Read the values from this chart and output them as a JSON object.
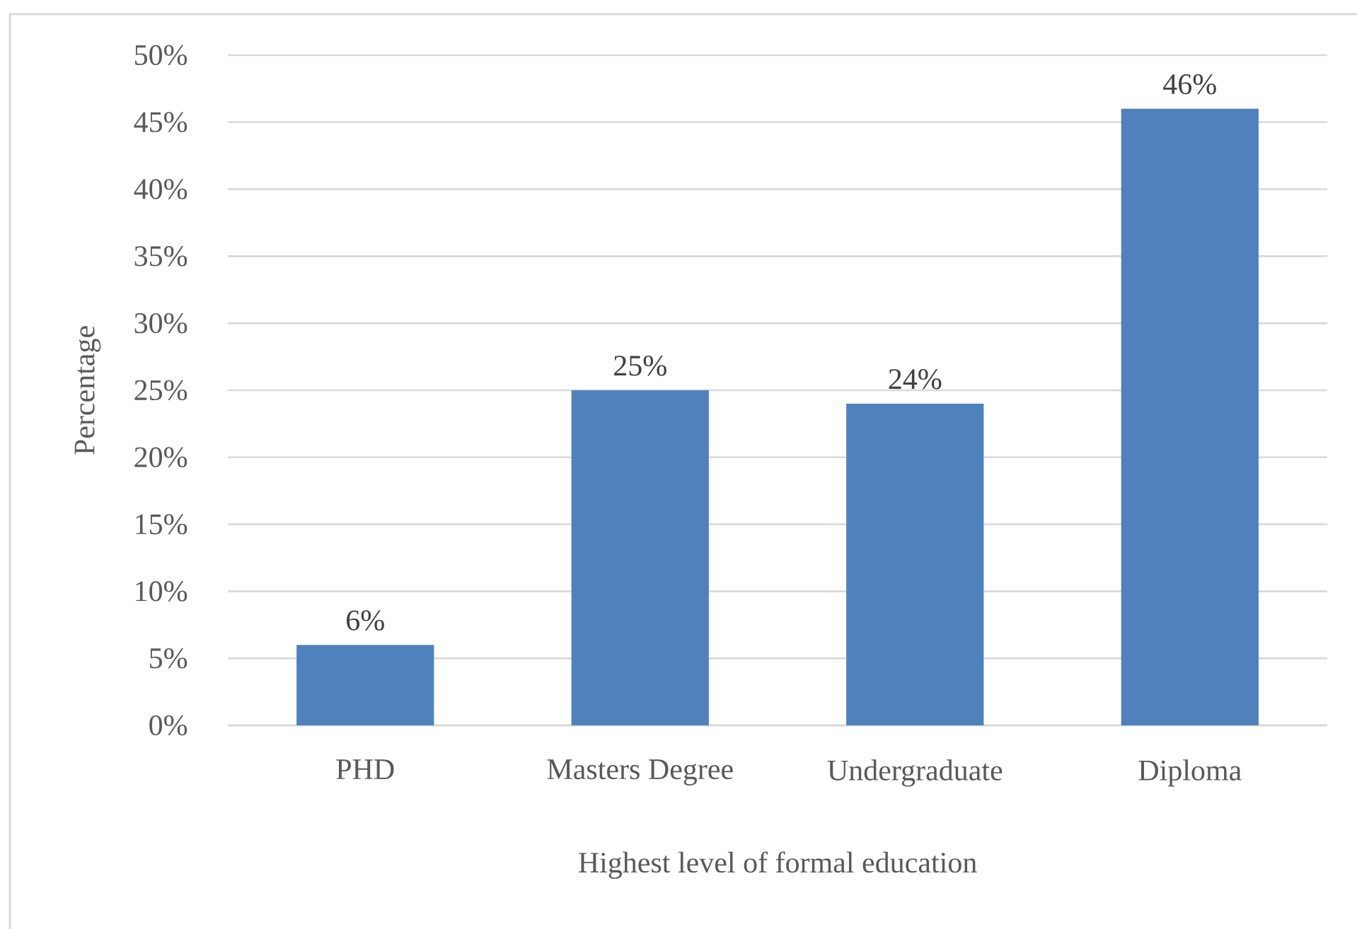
{
  "chart_data": {
    "type": "bar",
    "xlabel": "Highest level of formal education",
    "ylabel": "Percentage",
    "categories": [
      "PHD",
      "Masters Degree",
      "Undergraduate",
      "Diploma"
    ],
    "values": [
      6,
      25,
      24,
      46
    ],
    "color": "#4f81bd",
    "value_labels": [
      "6%",
      "25%",
      "24%",
      "46%"
    ],
    "ylim": [
      0,
      50
    ],
    "yticks": [
      {
        "value": 0,
        "label": "0%"
      },
      {
        "value": 5,
        "label": "5%"
      },
      {
        "value": 10,
        "label": "10%"
      },
      {
        "value": 15,
        "label": "15%"
      },
      {
        "value": 20,
        "label": "20%"
      },
      {
        "value": 25,
        "label": "25%"
      },
      {
        "value": 30,
        "label": "30%"
      },
      {
        "value": 35,
        "label": "35%"
      },
      {
        "value": 40,
        "label": "40%"
      },
      {
        "value": 45,
        "label": "45%"
      },
      {
        "value": 50,
        "label": "50%"
      }
    ],
    "grid": "y"
  }
}
